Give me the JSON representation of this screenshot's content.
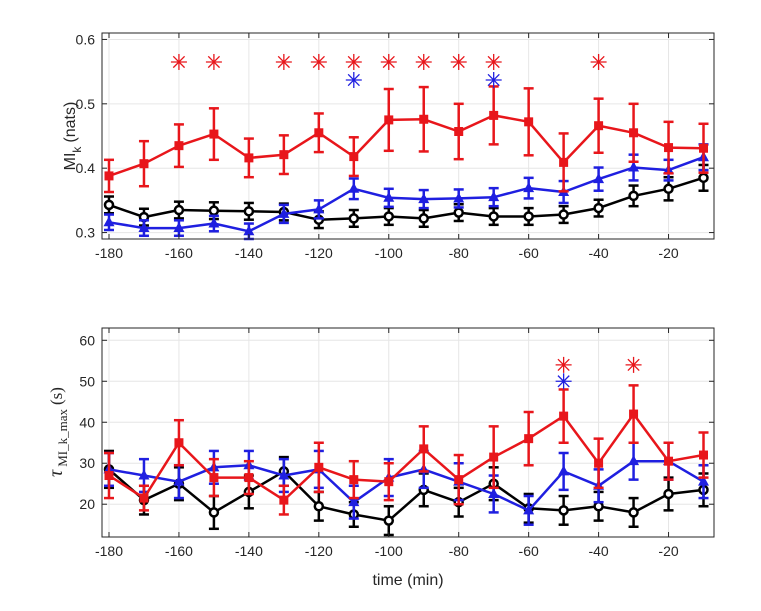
{
  "chart_data": [
    {
      "type": "line",
      "title": "",
      "ylabel_main": "MI",
      "ylabel_sub": "k",
      "ylabel_units": "(nats)",
      "xlabel": "",
      "x": [
        -180,
        -170,
        -160,
        -150,
        -140,
        -130,
        -120,
        -110,
        -100,
        -90,
        -80,
        -70,
        -60,
        -50,
        -40,
        -30,
        -20,
        -10
      ],
      "xlim": [
        -182,
        -7
      ],
      "ylim": [
        0.29,
        0.61
      ],
      "xticks": [
        -180,
        -160,
        -140,
        -120,
        -100,
        -80,
        -60,
        -40,
        -20
      ],
      "xtick_labels": [
        "-180",
        "-160",
        "-140",
        "-120",
        "-100",
        "-80",
        "-60",
        "-40",
        "-20"
      ],
      "yticks": [
        0.3,
        0.4,
        0.5,
        0.6
      ],
      "ytick_labels": [
        "0.3",
        "0.4",
        "0.5",
        "0.6"
      ],
      "grid": true,
      "series": [
        {
          "name": "red",
          "color": "#e8161b",
          "marker": "square",
          "values": [
            0.388,
            0.407,
            0.435,
            0.453,
            0.416,
            0.421,
            0.455,
            0.418,
            0.475,
            0.476,
            0.457,
            0.482,
            0.472,
            0.409,
            0.466,
            0.455,
            0.432,
            0.431
          ],
          "errors": [
            0.025,
            0.035,
            0.033,
            0.04,
            0.03,
            0.03,
            0.03,
            0.03,
            0.048,
            0.05,
            0.043,
            0.045,
            0.052,
            0.045,
            0.042,
            0.045,
            0.04,
            0.038
          ]
        },
        {
          "name": "blue",
          "color": "#1f1fe0",
          "marker": "triangle",
          "values": [
            0.316,
            0.307,
            0.307,
            0.314,
            0.302,
            0.329,
            0.336,
            0.368,
            0.354,
            0.352,
            0.353,
            0.355,
            0.369,
            0.363,
            0.383,
            0.401,
            0.397,
            0.417
          ],
          "errors": [
            0.012,
            0.012,
            0.012,
            0.012,
            0.012,
            0.014,
            0.014,
            0.016,
            0.014,
            0.014,
            0.014,
            0.014,
            0.016,
            0.017,
            0.018,
            0.02,
            0.016,
            0.02
          ]
        },
        {
          "name": "black",
          "color": "#000000",
          "marker": "circle",
          "values": [
            0.343,
            0.324,
            0.335,
            0.334,
            0.333,
            0.332,
            0.32,
            0.322,
            0.325,
            0.322,
            0.331,
            0.325,
            0.325,
            0.328,
            0.338,
            0.357,
            0.368,
            0.385
          ],
          "errors": [
            0.013,
            0.013,
            0.013,
            0.013,
            0.013,
            0.013,
            0.013,
            0.013,
            0.013,
            0.013,
            0.013,
            0.013,
            0.013,
            0.013,
            0.013,
            0.016,
            0.018,
            0.02
          ]
        }
      ],
      "annotations": [
        {
          "symbol": "*",
          "color": "#e8161b",
          "y": 0.565,
          "x_values": [
            -160,
            -150,
            -130,
            -120,
            -110,
            -100,
            -90,
            -80,
            -70,
            -40
          ]
        },
        {
          "symbol": "*",
          "color": "#1f1fe0",
          "y": 0.537,
          "x_values": [
            -110,
            -70
          ]
        }
      ]
    },
    {
      "type": "line",
      "title": "",
      "ylabel_main": "τ",
      "ylabel_sub": "MI_k_max",
      "ylabel_units": "(s)",
      "xlabel": "time (min)",
      "x": [
        -180,
        -170,
        -160,
        -150,
        -140,
        -130,
        -120,
        -110,
        -100,
        -90,
        -80,
        -70,
        -60,
        -50,
        -40,
        -30,
        -20,
        -10
      ],
      "xlim": [
        -182,
        -7
      ],
      "ylim": [
        12,
        63
      ],
      "xticks": [
        -180,
        -160,
        -140,
        -120,
        -100,
        -80,
        -60,
        -40,
        -20
      ],
      "xtick_labels": [
        "-180",
        "-160",
        "-140",
        "-120",
        "-100",
        "-80",
        "-60",
        "-40",
        "-20"
      ],
      "yticks": [
        20,
        30,
        40,
        50,
        60
      ],
      "ytick_labels": [
        "20",
        "30",
        "40",
        "50",
        "60"
      ],
      "grid": true,
      "series": [
        {
          "name": "red",
          "color": "#e8161b",
          "marker": "square",
          "values": [
            27.0,
            21.5,
            35.0,
            26.5,
            26.5,
            21.0,
            29.0,
            26.0,
            25.5,
            33.5,
            26.0,
            31.5,
            36.0,
            41.5,
            30.0,
            42.0,
            30.5,
            32.0
          ],
          "errors": [
            5.5,
            3.0,
            5.5,
            4.5,
            4.0,
            3.5,
            6.0,
            4.5,
            4.5,
            5.5,
            6.0,
            7.5,
            6.5,
            6.5,
            6.0,
            7.0,
            4.5,
            5.5
          ]
        },
        {
          "name": "blue",
          "color": "#1f1fe0",
          "marker": "triangle",
          "values": [
            28.5,
            27.0,
            25.5,
            29.0,
            29.5,
            27.0,
            28.5,
            20.5,
            26.5,
            28.5,
            25.5,
            22.5,
            18.5,
            28.0,
            24.5,
            30.5,
            30.5,
            25.5
          ],
          "errors": [
            4.0,
            4.0,
            4.0,
            4.0,
            3.5,
            4.0,
            4.5,
            4.0,
            4.5,
            4.5,
            4.5,
            4.5,
            3.5,
            4.5,
            4.0,
            4.5,
            4.5,
            4.0
          ]
        },
        {
          "name": "black",
          "color": "#000000",
          "marker": "circle",
          "values": [
            28.5,
            21.0,
            25.0,
            18.0,
            23.0,
            28.0,
            19.5,
            17.5,
            16.0,
            23.5,
            20.5,
            25.0,
            19.0,
            18.5,
            19.5,
            18.0,
            22.5,
            23.5
          ],
          "errors": [
            4.5,
            3.5,
            4.0,
            4.0,
            4.0,
            3.5,
            3.5,
            3.0,
            3.5,
            4.0,
            3.5,
            4.0,
            3.5,
            3.5,
            3.5,
            3.5,
            4.0,
            4.0
          ]
        }
      ],
      "annotations": [
        {
          "symbol": "*",
          "color": "#e8161b",
          "y": 54.0,
          "x_values": [
            -50,
            -30
          ]
        },
        {
          "symbol": "*",
          "color": "#1f1fe0",
          "y": 50.0,
          "x_values": [
            -50
          ]
        }
      ]
    }
  ]
}
